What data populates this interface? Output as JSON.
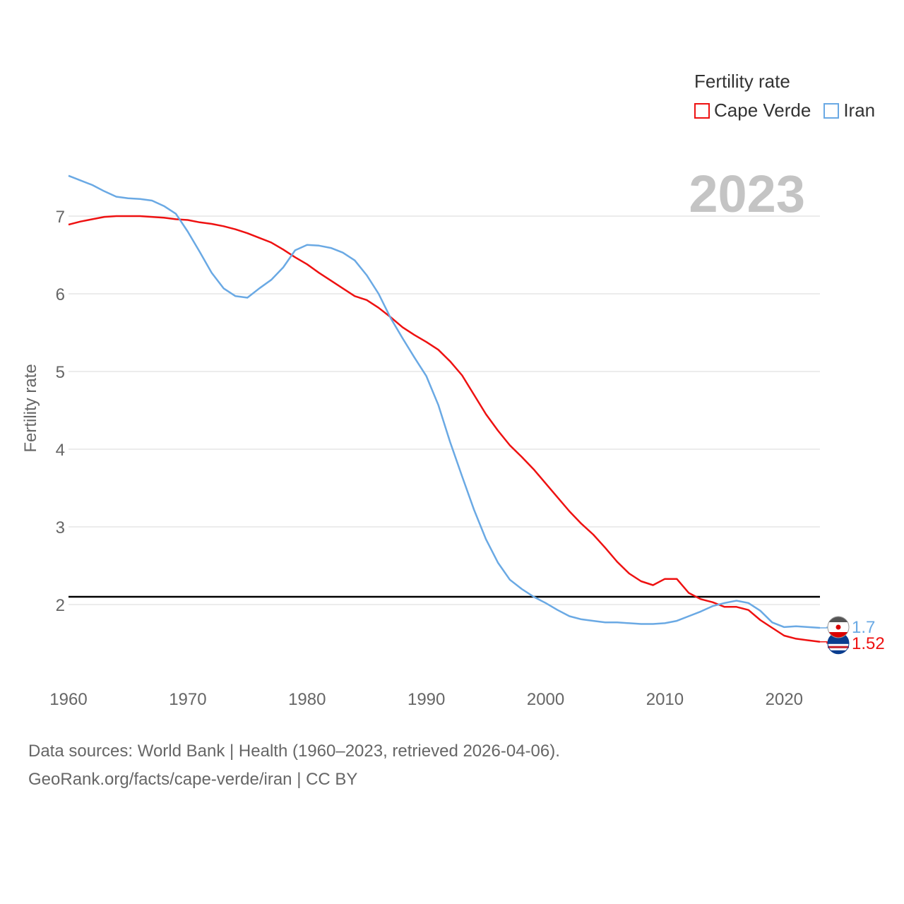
{
  "legend": {
    "title": "Fertility rate",
    "items": [
      {
        "label": "Cape Verde",
        "color": "#ee1111"
      },
      {
        "label": "Iran",
        "color": "#6aa9e4"
      }
    ]
  },
  "footer": {
    "line1": "Data sources: World Bank | Health (1960–2023, retrieved 2026-04-06).",
    "line2": "GeoRank.org/facts/cape-verde/iran | CC BY"
  },
  "chart_data": {
    "type": "line",
    "title": "Fertility rate",
    "year_label": "2023",
    "ylabel": "Fertility rate",
    "xlabel": "",
    "xlim": [
      1960,
      2023
    ],
    "ylim": [
      1.0,
      7.8
    ],
    "yticks": [
      2,
      3,
      4,
      5,
      6,
      7
    ],
    "xticks": [
      1960,
      1970,
      1980,
      1990,
      2000,
      2010,
      2020
    ],
    "reference_line": 2.1,
    "series": [
      {
        "name": "Cape Verde",
        "color": "#ee1111",
        "end_label": "1.52",
        "x": [
          1960,
          1961,
          1962,
          1963,
          1964,
          1965,
          1966,
          1967,
          1968,
          1969,
          1970,
          1971,
          1972,
          1973,
          1974,
          1975,
          1976,
          1977,
          1978,
          1979,
          1980,
          1981,
          1982,
          1983,
          1984,
          1985,
          1986,
          1987,
          1988,
          1989,
          1990,
          1991,
          1992,
          1993,
          1994,
          1995,
          1996,
          1997,
          1998,
          1999,
          2000,
          2001,
          2002,
          2003,
          2004,
          2005,
          2006,
          2007,
          2008,
          2009,
          2010,
          2011,
          2012,
          2013,
          2014,
          2015,
          2016,
          2017,
          2018,
          2019,
          2020,
          2021,
          2022,
          2023
        ],
        "values": [
          6.89,
          6.93,
          6.96,
          6.99,
          7.0,
          7.0,
          7.0,
          6.99,
          6.98,
          6.96,
          6.95,
          6.92,
          6.9,
          6.87,
          6.83,
          6.78,
          6.72,
          6.66,
          6.57,
          6.47,
          6.38,
          6.27,
          6.17,
          6.07,
          5.97,
          5.92,
          5.82,
          5.7,
          5.57,
          5.47,
          5.38,
          5.28,
          5.13,
          4.95,
          4.7,
          4.45,
          4.24,
          4.05,
          3.9,
          3.74,
          3.56,
          3.38,
          3.2,
          3.04,
          2.9,
          2.73,
          2.55,
          2.4,
          2.3,
          2.25,
          2.33,
          2.33,
          2.15,
          2.07,
          2.03,
          1.97,
          1.97,
          1.93,
          1.8,
          1.7,
          1.6,
          1.56,
          1.54,
          1.52
        ]
      },
      {
        "name": "Iran",
        "color": "#6aa9e4",
        "end_label": "1.7",
        "x": [
          1960,
          1961,
          1962,
          1963,
          1964,
          1965,
          1966,
          1967,
          1968,
          1969,
          1970,
          1971,
          1972,
          1973,
          1974,
          1975,
          1976,
          1977,
          1978,
          1979,
          1980,
          1981,
          1982,
          1983,
          1984,
          1985,
          1986,
          1987,
          1988,
          1989,
          1990,
          1991,
          1992,
          1993,
          1994,
          1995,
          1996,
          1997,
          1998,
          1999,
          2000,
          2001,
          2002,
          2003,
          2004,
          2005,
          2006,
          2007,
          2008,
          2009,
          2010,
          2011,
          2012,
          2013,
          2014,
          2015,
          2016,
          2017,
          2018,
          2019,
          2020,
          2021,
          2022,
          2023
        ],
        "values": [
          7.52,
          7.46,
          7.4,
          7.32,
          7.25,
          7.23,
          7.22,
          7.2,
          7.13,
          7.03,
          6.8,
          6.54,
          6.27,
          6.07,
          5.97,
          5.95,
          6.07,
          6.18,
          6.34,
          6.56,
          6.63,
          6.62,
          6.59,
          6.53,
          6.43,
          6.24,
          6.0,
          5.69,
          5.43,
          5.18,
          4.94,
          4.57,
          4.09,
          3.65,
          3.22,
          2.84,
          2.54,
          2.32,
          2.2,
          2.1,
          2.02,
          1.93,
          1.85,
          1.81,
          1.79,
          1.77,
          1.77,
          1.76,
          1.75,
          1.75,
          1.76,
          1.79,
          1.85,
          1.91,
          1.98,
          2.02,
          2.05,
          2.02,
          1.92,
          1.77,
          1.71,
          1.72,
          1.71,
          1.7
        ]
      }
    ]
  }
}
